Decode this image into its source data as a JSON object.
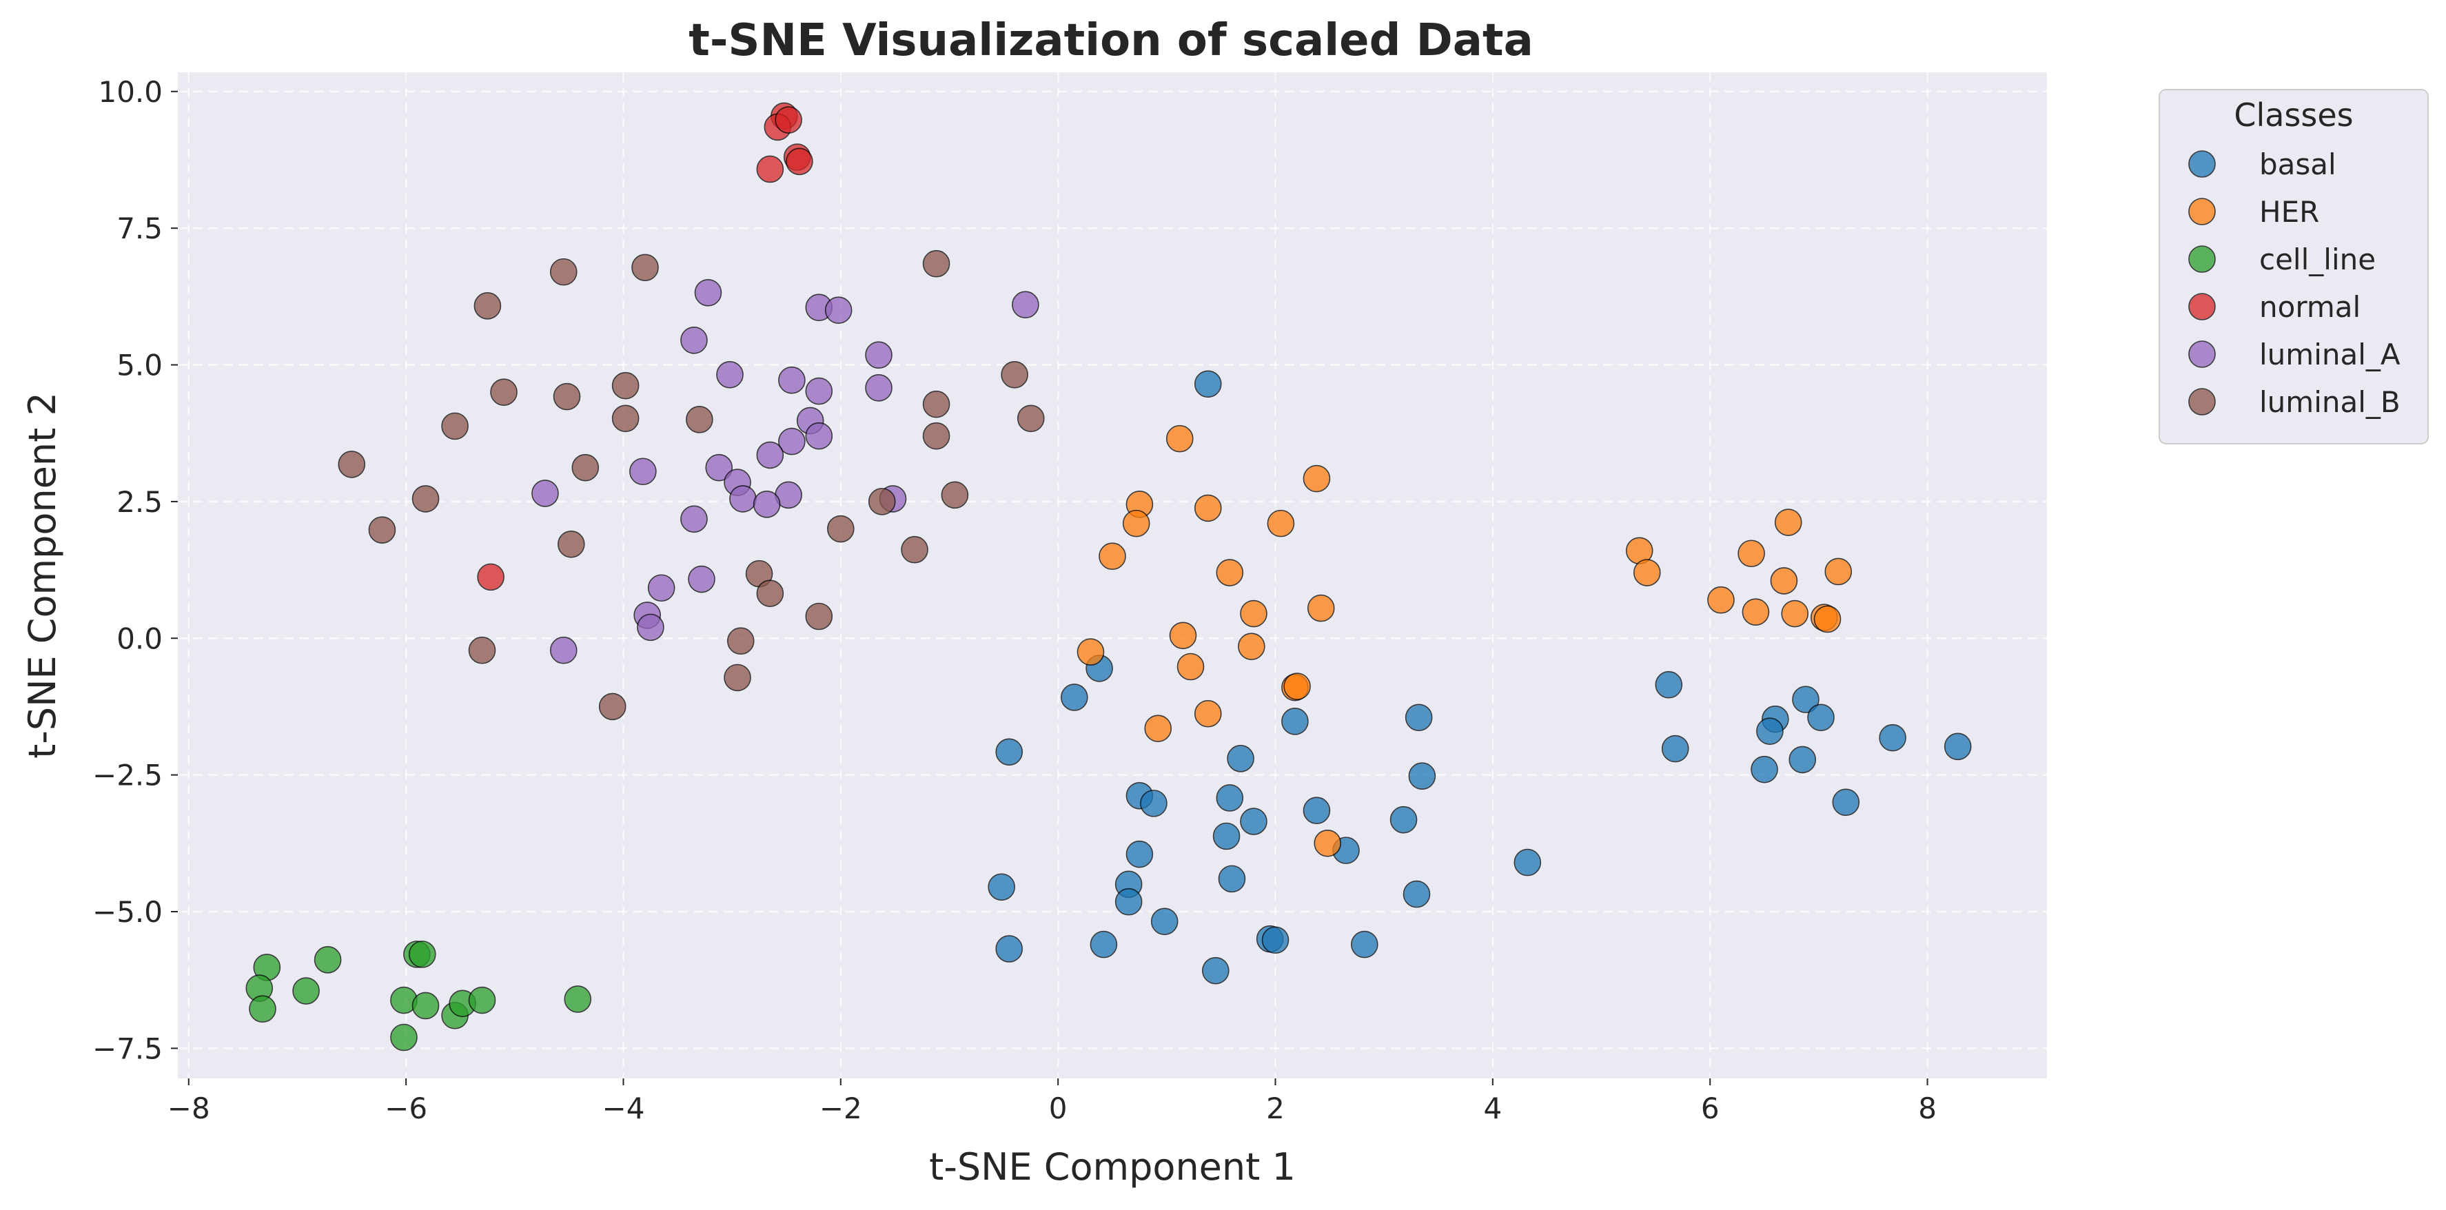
{
  "chart_data": {
    "type": "scatter",
    "title": "t-SNE Visualization of scaled Data",
    "xlabel": "t-SNE Component 1",
    "ylabel": "t-SNE Component 2",
    "xlim": [
      -8.1,
      9.1
    ],
    "ylim": [
      -8.05,
      10.35
    ],
    "xticks": [
      -8,
      -6,
      -4,
      -2,
      0,
      2,
      4,
      6,
      8
    ],
    "yticks": [
      -7.5,
      -5.0,
      -2.5,
      0.0,
      2.5,
      5.0,
      7.5,
      10.0
    ],
    "xtick_labels": [
      "−8",
      "−6",
      "−4",
      "−2",
      "0",
      "2",
      "4",
      "6",
      "8"
    ],
    "ytick_labels": [
      "−7.5",
      "−5.0",
      "−2.5",
      "0.0",
      "2.5",
      "5.0",
      "7.5",
      "10.0"
    ],
    "grid": true,
    "background": "#eaeaf2",
    "legend": {
      "title": "Classes",
      "position": "outside-top-right"
    },
    "series": [
      {
        "name": "basal",
        "color": "#1f77b4",
        "points": [
          [
            1.38,
            4.65
          ],
          [
            0.15,
            -1.08
          ],
          [
            0.38,
            -0.55
          ],
          [
            -0.45,
            -2.08
          ],
          [
            1.68,
            -2.2
          ],
          [
            2.18,
            -1.52
          ],
          [
            3.32,
            -1.45
          ],
          [
            3.35,
            -2.52
          ],
          [
            0.75,
            -2.88
          ],
          [
            0.88,
            -3.02
          ],
          [
            1.58,
            -2.92
          ],
          [
            1.8,
            -3.35
          ],
          [
            1.55,
            -3.62
          ],
          [
            2.38,
            -3.15
          ],
          [
            2.65,
            -3.88
          ],
          [
            3.18,
            -3.32
          ],
          [
            0.75,
            -3.95
          ],
          [
            0.65,
            -4.5
          ],
          [
            0.65,
            -4.82
          ],
          [
            1.6,
            -4.4
          ],
          [
            0.98,
            -5.18
          ],
          [
            1.95,
            -5.5
          ],
          [
            2.0,
            -5.52
          ],
          [
            2.82,
            -5.6
          ],
          [
            0.42,
            -5.6
          ],
          [
            1.45,
            -6.08
          ],
          [
            -0.45,
            -5.68
          ],
          [
            -0.52,
            -4.55
          ],
          [
            3.3,
            -4.68
          ],
          [
            4.32,
            -4.1
          ],
          [
            5.62,
            -0.85
          ],
          [
            5.68,
            -2.02
          ],
          [
            6.6,
            -1.48
          ],
          [
            6.55,
            -1.7
          ],
          [
            6.88,
            -1.12
          ],
          [
            7.02,
            -1.45
          ],
          [
            7.68,
            -1.82
          ],
          [
            8.28,
            -1.98
          ],
          [
            6.5,
            -2.4
          ],
          [
            6.85,
            -2.22
          ],
          [
            7.25,
            -3.0
          ]
        ]
      },
      {
        "name": "HER",
        "color": "#ff7f0e",
        "points": [
          [
            1.12,
            3.65
          ],
          [
            2.38,
            2.92
          ],
          [
            0.75,
            2.45
          ],
          [
            1.38,
            2.38
          ],
          [
            0.72,
            2.1
          ],
          [
            2.05,
            2.1
          ],
          [
            0.5,
            1.5
          ],
          [
            1.58,
            1.2
          ],
          [
            1.8,
            0.45
          ],
          [
            2.42,
            0.55
          ],
          [
            0.3,
            -0.25
          ],
          [
            1.15,
            0.05
          ],
          [
            1.78,
            -0.15
          ],
          [
            1.22,
            -0.52
          ],
          [
            2.18,
            -0.9
          ],
          [
            2.2,
            -0.88
          ],
          [
            0.92,
            -1.65
          ],
          [
            1.38,
            -1.38
          ],
          [
            2.48,
            -3.75
          ],
          [
            5.35,
            1.6
          ],
          [
            5.42,
            1.2
          ],
          [
            6.72,
            2.12
          ],
          [
            6.38,
            1.55
          ],
          [
            7.18,
            1.22
          ],
          [
            6.1,
            0.7
          ],
          [
            6.42,
            0.48
          ],
          [
            6.68,
            1.05
          ],
          [
            6.78,
            0.45
          ],
          [
            7.05,
            0.38
          ],
          [
            7.08,
            0.35
          ]
        ]
      },
      {
        "name": "cell_line",
        "color": "#2ca02c",
        "points": [
          [
            -7.28,
            -6.02
          ],
          [
            -7.35,
            -6.4
          ],
          [
            -7.32,
            -6.78
          ],
          [
            -6.92,
            -6.45
          ],
          [
            -6.72,
            -5.88
          ],
          [
            -5.9,
            -5.78
          ],
          [
            -5.85,
            -5.78
          ],
          [
            -6.02,
            -6.62
          ],
          [
            -5.82,
            -6.72
          ],
          [
            -5.55,
            -6.9
          ],
          [
            -5.48,
            -6.68
          ],
          [
            -5.3,
            -6.62
          ],
          [
            -6.02,
            -7.3
          ],
          [
            -4.42,
            -6.6
          ]
        ]
      },
      {
        "name": "normal",
        "color": "#d62728",
        "points": [
          [
            -2.52,
            9.55
          ],
          [
            -2.58,
            9.35
          ],
          [
            -2.48,
            9.48
          ],
          [
            -2.4,
            8.8
          ],
          [
            -2.38,
            8.72
          ],
          [
            -2.65,
            8.58
          ],
          [
            -5.22,
            1.12
          ]
        ]
      },
      {
        "name": "luminal_A",
        "color": "#9467bd",
        "points": [
          [
            -3.22,
            6.32
          ],
          [
            -0.3,
            6.1
          ],
          [
            -2.2,
            6.05
          ],
          [
            -2.02,
            6.0
          ],
          [
            -3.35,
            5.45
          ],
          [
            -3.02,
            4.82
          ],
          [
            -2.45,
            4.72
          ],
          [
            -1.65,
            5.18
          ],
          [
            -1.65,
            4.58
          ],
          [
            -2.2,
            4.52
          ],
          [
            -2.28,
            3.98
          ],
          [
            -2.2,
            3.7
          ],
          [
            -2.45,
            3.6
          ],
          [
            -2.65,
            3.35
          ],
          [
            -3.82,
            3.05
          ],
          [
            -3.12,
            3.12
          ],
          [
            -2.95,
            2.85
          ],
          [
            -2.9,
            2.55
          ],
          [
            -2.48,
            2.62
          ],
          [
            -2.68,
            2.45
          ],
          [
            -1.52,
            2.55
          ],
          [
            -4.72,
            2.65
          ],
          [
            -3.35,
            2.18
          ],
          [
            -3.65,
            0.92
          ],
          [
            -3.28,
            1.08
          ],
          [
            -3.78,
            0.42
          ],
          [
            -3.75,
            0.2
          ],
          [
            -4.55,
            -0.22
          ]
        ]
      },
      {
        "name": "luminal_B",
        "color": "#8c564b",
        "points": [
          [
            -4.55,
            6.7
          ],
          [
            -3.8,
            6.78
          ],
          [
            -1.12,
            6.85
          ],
          [
            -5.25,
            6.08
          ],
          [
            -3.98,
            4.62
          ],
          [
            -5.1,
            4.5
          ],
          [
            -4.52,
            4.42
          ],
          [
            -5.55,
            3.88
          ],
          [
            -3.98,
            4.02
          ],
          [
            -3.3,
            4.0
          ],
          [
            -0.4,
            4.82
          ],
          [
            -0.25,
            4.02
          ],
          [
            -1.12,
            4.28
          ],
          [
            -1.12,
            3.7
          ],
          [
            -6.5,
            3.18
          ],
          [
            -4.35,
            3.12
          ],
          [
            -5.82,
            2.55
          ],
          [
            -0.95,
            2.62
          ],
          [
            -1.62,
            2.5
          ],
          [
            -6.22,
            1.98
          ],
          [
            -4.48,
            1.72
          ],
          [
            -2.0,
            2.0
          ],
          [
            -1.32,
            1.62
          ],
          [
            -2.75,
            1.18
          ],
          [
            -2.65,
            0.82
          ],
          [
            -2.2,
            0.4
          ],
          [
            -5.3,
            -0.22
          ],
          [
            -2.92,
            -0.05
          ],
          [
            -2.95,
            -0.72
          ],
          [
            -4.1,
            -1.25
          ]
        ]
      }
    ]
  }
}
